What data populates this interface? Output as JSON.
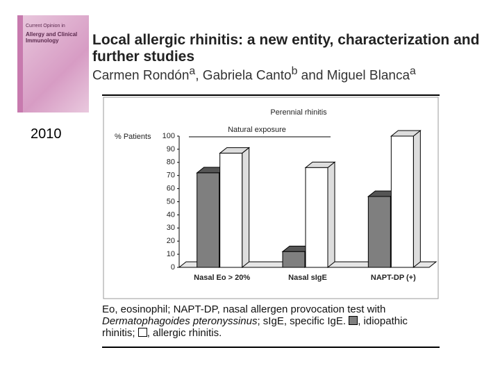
{
  "slide": {
    "cover": {
      "series": "Current Opinion in",
      "journal": "Allergy and Clinical Immunology"
    },
    "year": "2010",
    "title": "Local allergic rhinitis: a new entity, characterization and further studies",
    "authors": [
      {
        "name": "Carmen Rondón",
        "sup": "a"
      },
      {
        "name": "Gabriela Canto",
        "sup": "b"
      },
      {
        "name": "Miguel Blanca",
        "sup": "a"
      }
    ],
    "author_separators": [
      ", ",
      " and "
    ],
    "caption": {
      "text1": "Eo, eosinophil; NAPT-DP, nasal allergen provocation test with ",
      "italic": "Dermatophagoides pteronyssinus",
      "text2": "; sIgE, specific IgE. ",
      "sep": ", ",
      "join": "; ",
      "end": "."
    }
  },
  "chart_data": {
    "type": "bar3d",
    "title": "Perennial rhinitis",
    "y_label": "% Patients",
    "annotation": "Natural exposure",
    "categories": [
      "Nasal Eo > 20%",
      "Nasal sIgE",
      "NAPT-DP (+)"
    ],
    "series": [
      {
        "name": "idiopathic rhinitis",
        "color": "#7f7f7f",
        "values": [
          72,
          12,
          54
        ]
      },
      {
        "name": "allergic rhinitis",
        "color": "#ffffff",
        "values": [
          87,
          76,
          100
        ]
      }
    ],
    "ylim": [
      0,
      100
    ],
    "yticks": [
      0,
      10,
      20,
      30,
      40,
      50,
      60,
      70,
      80,
      90,
      100
    ],
    "grid": false
  }
}
